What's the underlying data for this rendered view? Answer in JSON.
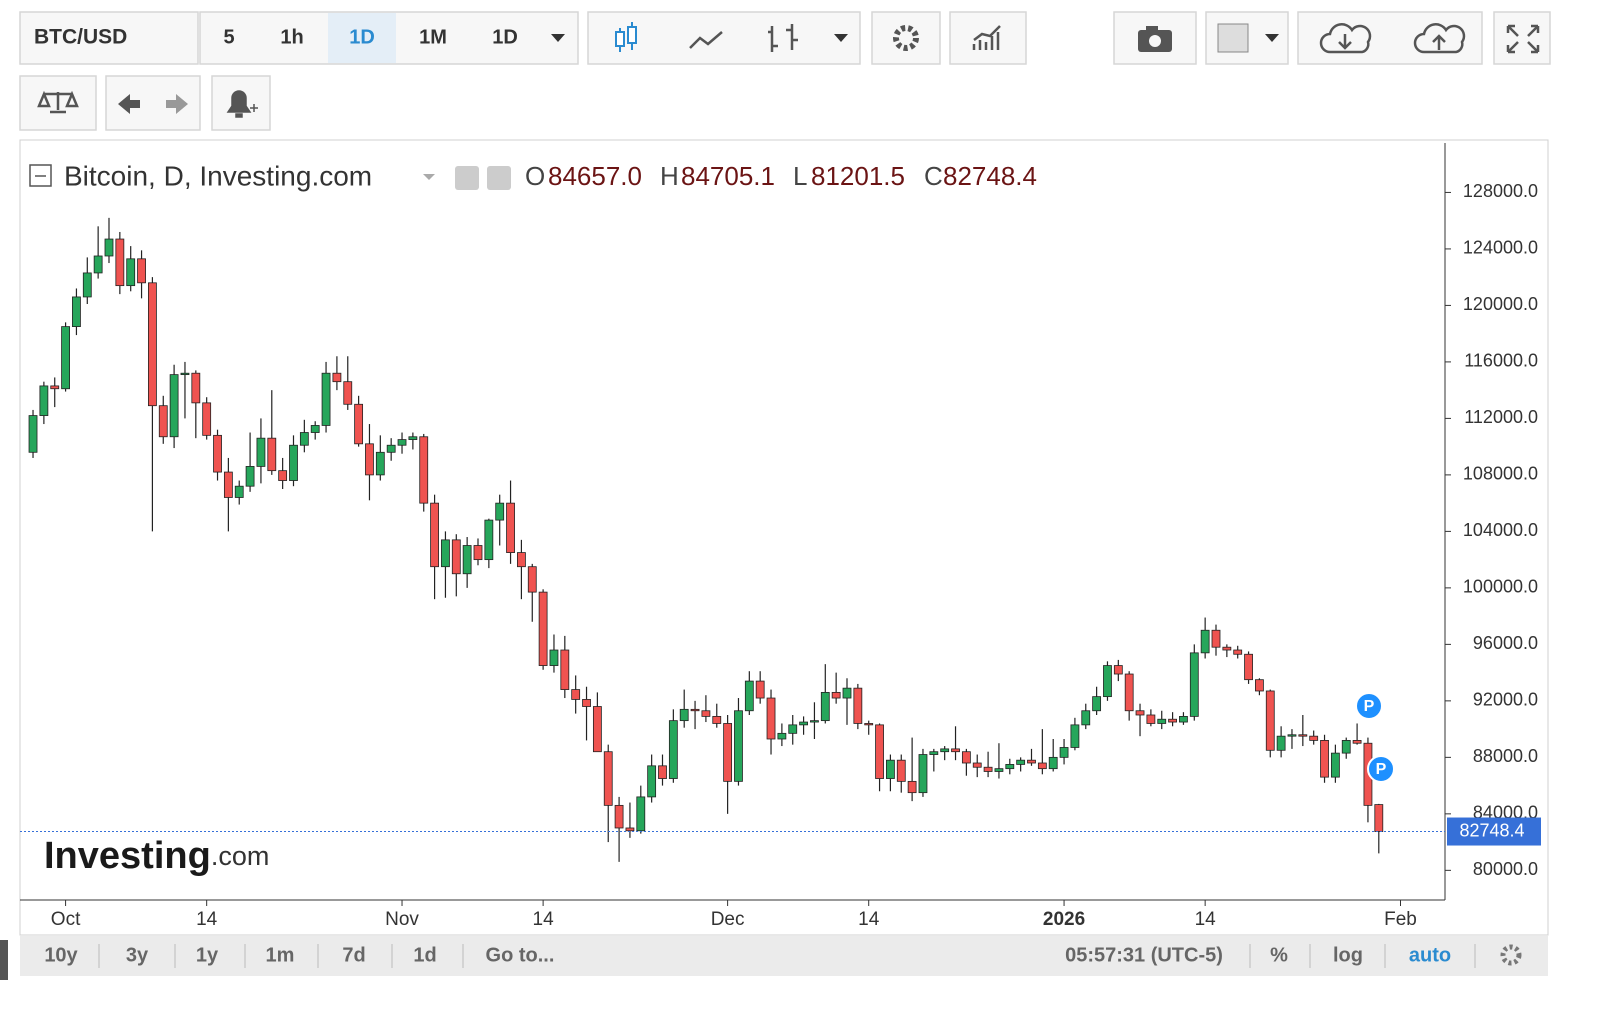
{
  "toolbar": {
    "symbol": "BTC/USD",
    "intervals": [
      "5",
      "1h",
      "1D",
      "1M",
      "1D"
    ]
  },
  "chart_data": {
    "type": "candlestick",
    "title": "Bitcoin, D, Investing.com",
    "ohlc_header": [
      {
        "key": "O",
        "value": "84657.0"
      },
      {
        "key": "H",
        "value": "84705.1"
      },
      {
        "key": "L",
        "value": "81201.5"
      },
      {
        "key": "C",
        "value": "82748.4"
      }
    ],
    "up_color": "#26a65b",
    "down_color": "#ef5350",
    "price_color": "#3670d8",
    "open": [
      109600,
      112200,
      114300,
      114100,
      118500,
      120600,
      122300,
      123500,
      124700,
      121400,
      123300,
      121600,
      112900,
      110700,
      115100,
      115200,
      113100,
      110800,
      108200,
      106400,
      107200,
      108600,
      110600,
      108300,
      107600,
      110100,
      111000,
      111500,
      115200,
      114600,
      113000,
      110200,
      108000,
      109600,
      110100,
      110500,
      110700,
      106000,
      101500,
      103400,
      101000,
      103000,
      102000,
      104800,
      106000,
      102500,
      101500,
      99700,
      94500,
      95600,
      92800,
      92100,
      91600,
      88400,
      84600,
      83000,
      82800,
      85200,
      87400,
      86500,
      90600,
      91400,
      91300,
      90900,
      90400,
      86300,
      91300,
      93400,
      92200,
      89300,
      89700,
      90300,
      90500,
      90600,
      92600,
      92200,
      92900,
      90400,
      90300,
      86500,
      87800,
      86300,
      85500,
      88200,
      88400,
      88600,
      88400,
      87600,
      87300,
      87000,
      87200,
      87500,
      87800,
      87600,
      87200,
      88000,
      88700,
      90300,
      91300,
      92300,
      94500,
      93900,
      91300,
      91000,
      90400,
      90700,
      90500,
      90900,
      95400,
      97000,
      95800,
      95600,
      95300,
      93500,
      92700,
      88500,
      89500,
      89600,
      89500,
      89200,
      86600,
      88300,
      89200,
      89000,
      84657.0
    ],
    "high": [
      112600,
      114600,
      114900,
      118800,
      121200,
      123400,
      125600,
      126200,
      125200,
      124200,
      123900,
      122000,
      113600,
      115800,
      116000,
      115400,
      113500,
      111200,
      109200,
      107600,
      111000,
      112000,
      114000,
      109200,
      110800,
      111900,
      111800,
      116000,
      116400,
      116400,
      113600,
      111600,
      110800,
      110600,
      111000,
      111000,
      110900,
      106600,
      104000,
      103800,
      103600,
      103500,
      104900,
      106600,
      107600,
      103400,
      101700,
      99900,
      96700,
      96600,
      93800,
      93000,
      92600,
      88900,
      85200,
      84800,
      86000,
      88200,
      88200,
      91400,
      92800,
      92000,
      92400,
      91800,
      91000,
      92200,
      94100,
      94100,
      92800,
      90400,
      91000,
      90900,
      91900,
      94600,
      94000,
      93600,
      93200,
      90600,
      90400,
      88200,
      88200,
      89400,
      88600,
      88600,
      88800,
      90200,
      88600,
      88200,
      88400,
      89000,
      87900,
      88000,
      88600,
      90000,
      89300,
      89300,
      90800,
      91800,
      93000,
      94800,
      94900,
      94100,
      91800,
      91400,
      91300,
      91200,
      91200,
      96000,
      97900,
      97400,
      96000,
      95900,
      95500,
      93600,
      92800,
      90200,
      90000,
      91000,
      89900,
      89600,
      88900,
      89400,
      90400,
      89400,
      84705.1
    ],
    "low": [
      109200,
      111600,
      112800,
      113900,
      117900,
      120100,
      121900,
      123000,
      120800,
      121000,
      120500,
      104000,
      110200,
      109900,
      112000,
      110600,
      110500,
      107600,
      104000,
      105900,
      106800,
      107400,
      108000,
      107000,
      107200,
      109600,
      110500,
      111000,
      114000,
      112600,
      110000,
      106200,
      107600,
      109000,
      109500,
      109800,
      105400,
      99200,
      99300,
      99400,
      100000,
      101600,
      101400,
      103000,
      101700,
      99200,
      97600,
      94200,
      94000,
      92200,
      91100,
      89200,
      88400,
      82000,
      80600,
      82300,
      82600,
      84800,
      86000,
      86200,
      90100,
      90000,
      90500,
      90100,
      84000,
      86000,
      91000,
      91800,
      88200,
      88800,
      88900,
      89600,
      89300,
      90400,
      91800,
      90300,
      90000,
      89600,
      85600,
      85600,
      85500,
      84900,
      85200,
      87000,
      87800,
      87800,
      86700,
      86600,
      86600,
      86500,
      86800,
      87000,
      87400,
      86800,
      87000,
      87500,
      88500,
      90000,
      91000,
      92000,
      93400,
      90600,
      89500,
      90200,
      90000,
      90200,
      90300,
      90600,
      95000,
      95200,
      95100,
      95000,
      93200,
      92400,
      88000,
      88000,
      88600,
      88800,
      88900,
      86200,
      86200,
      87900,
      88900,
      83400,
      81201.5
    ],
    "close": [
      112200,
      114300,
      114100,
      118500,
      120600,
      122300,
      123500,
      124700,
      121400,
      123300,
      121600,
      112900,
      110700,
      115100,
      115200,
      113100,
      110800,
      108200,
      106400,
      107200,
      108600,
      110600,
      108300,
      107600,
      110100,
      111000,
      111500,
      115200,
      114600,
      113000,
      110200,
      108000,
      109600,
      110100,
      110500,
      110700,
      106000,
      101500,
      103400,
      101000,
      103000,
      102000,
      104800,
      106000,
      102500,
      101500,
      99700,
      94500,
      95600,
      92800,
      92100,
      91600,
      88400,
      84600,
      83000,
      82800,
      85200,
      87400,
      86500,
      90600,
      91400,
      91300,
      90900,
      90400,
      86300,
      91300,
      93400,
      92200,
      89300,
      89700,
      90300,
      90500,
      90600,
      92600,
      92200,
      92900,
      90400,
      90300,
      86500,
      87800,
      86300,
      85500,
      88200,
      88400,
      88600,
      88400,
      87600,
      87300,
      87000,
      87200,
      87500,
      87800,
      87600,
      87200,
      88000,
      88700,
      90300,
      91300,
      92300,
      94500,
      93900,
      91300,
      91000,
      90400,
      90700,
      90500,
      90900,
      95400,
      97000,
      95800,
      95600,
      95300,
      93500,
      92700,
      88500,
      89500,
      89600,
      89500,
      89200,
      86600,
      88300,
      89200,
      89000,
      84600,
      82748.4
    ],
    "xlim": [
      -1.2,
      130.1
    ],
    "xticks": [
      {
        "value": 3,
        "label": "Oct"
      },
      {
        "value": 16,
        "label": "14"
      },
      {
        "value": 34,
        "label": "Nov"
      },
      {
        "value": 47,
        "label": "14"
      },
      {
        "value": 64,
        "label": "Dec"
      },
      {
        "value": 77,
        "label": "14"
      },
      {
        "value": 95,
        "label": "2026",
        "bold": true
      },
      {
        "value": 108,
        "label": "14"
      },
      {
        "value": 126,
        "label": "Feb"
      }
    ],
    "ylim": [
      77900,
      131500
    ],
    "yticks": [
      {
        "value": 80000,
        "label": "80000.0"
      },
      {
        "value": 84000,
        "label": "84000.0"
      },
      {
        "value": 88000,
        "label": "88000.0"
      },
      {
        "value": 92000,
        "label": "92000.0"
      },
      {
        "value": 96000,
        "label": "96000.0"
      },
      {
        "value": 100000,
        "label": "100000.0"
      },
      {
        "value": 104000,
        "label": "104000.0"
      },
      {
        "value": 108000,
        "label": "108000.0"
      },
      {
        "value": 112000,
        "label": "112000.0"
      },
      {
        "value": 116000,
        "label": "116000.0"
      },
      {
        "value": 120000,
        "label": "120000.0"
      },
      {
        "value": 124000,
        "label": "124000.0"
      },
      {
        "value": 128000,
        "label": "128000.0"
      }
    ],
    "event_markers": [
      "P",
      "P"
    ]
  },
  "logo": {
    "name": "Investing",
    "suffix": ".com"
  },
  "bottom_bar": {
    "ranges": [
      "10y",
      "3y",
      "1y",
      "1m",
      "7d",
      "1d"
    ],
    "goto": "Go to...",
    "time": "05:57:31 (UTC-5)",
    "percent": "%",
    "log": "log",
    "auto": "auto"
  }
}
